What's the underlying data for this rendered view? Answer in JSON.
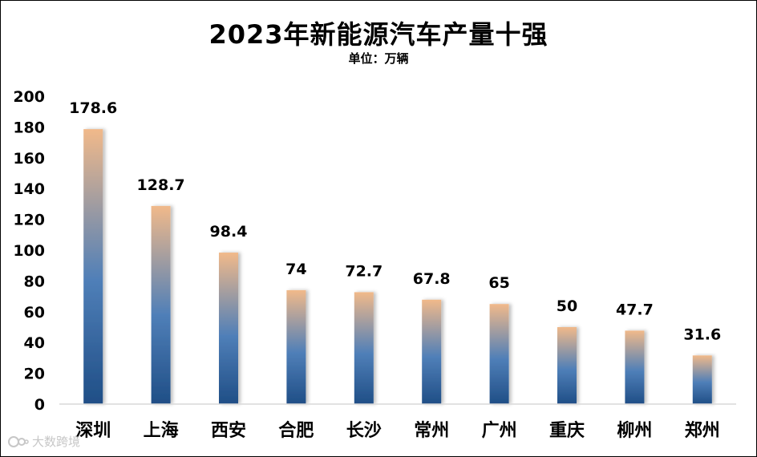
{
  "chart_data": {
    "type": "bar",
    "title": "2023年新能源汽车产量十强",
    "subtitle": "单位：万辆",
    "categories": [
      "深圳",
      "上海",
      "西安",
      "合肥",
      "长沙",
      "常州",
      "广州",
      "重庆",
      "柳州",
      "郑州"
    ],
    "values": [
      178.6,
      128.7,
      98.4,
      74,
      72.7,
      67.8,
      65,
      50,
      47.7,
      31.6
    ],
    "value_labels": [
      "178.6",
      "128.7",
      "98.4",
      "74",
      "72.7",
      "67.8",
      "65",
      "50",
      "47.7",
      "31.6"
    ],
    "yticks": [
      0,
      20,
      40,
      60,
      80,
      100,
      120,
      140,
      160,
      180,
      200
    ],
    "ylim": [
      0,
      200
    ],
    "grid": false,
    "legend": "none",
    "colors": {
      "bar_bottom": "#1f4e86",
      "bar_mid": "#4f7fb8",
      "bar_top": "#f1b98a",
      "axis_line": "#d9d9d9",
      "text": "#000000"
    }
  },
  "watermark": {
    "text": "大数跨境",
    "icon": "logo-icon"
  }
}
